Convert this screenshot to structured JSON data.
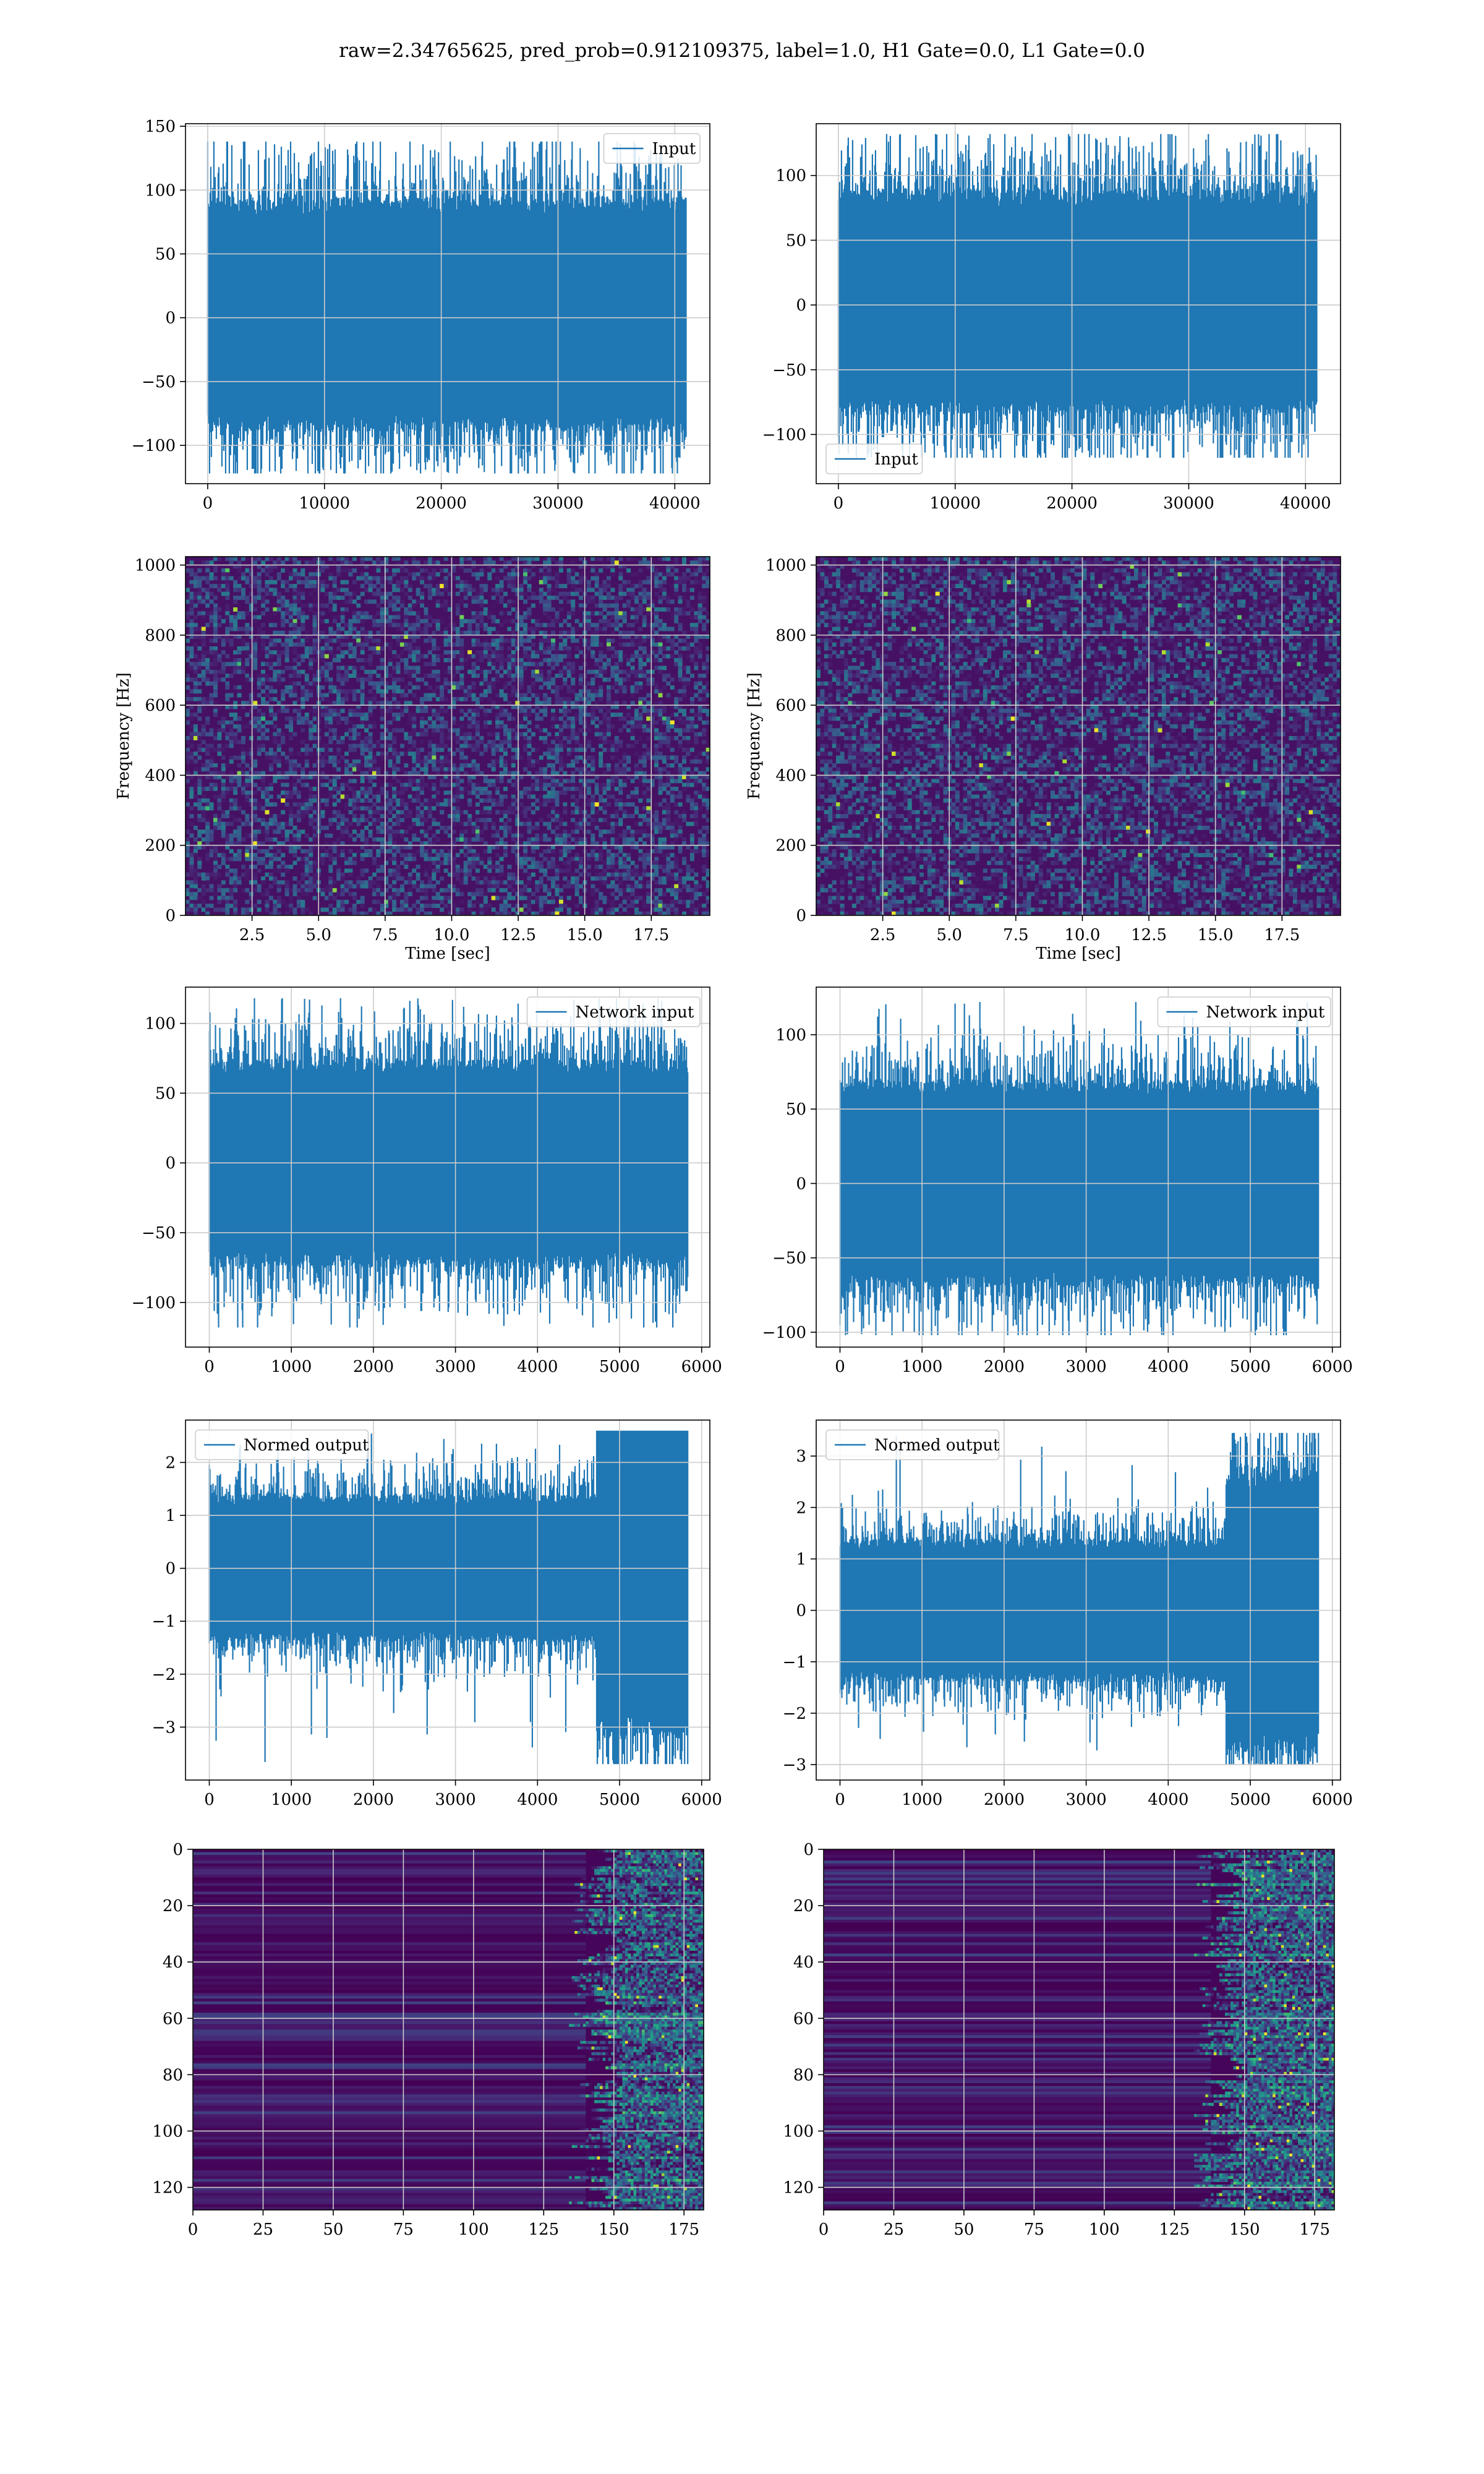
{
  "title": "raw=2.34765625, pred_prob=0.912109375, label=1.0, H1 Gate=0.0, L1 Gate=0.0",
  "colors": {
    "line": "#1f77b4",
    "grid": "#cccccc",
    "axis": "#000000",
    "cmap": "viridis"
  },
  "chart_data": [
    {
      "id": "h1-input",
      "type": "line",
      "legend": "Input",
      "legend_loc": "upper right",
      "xlim": [
        -1900,
        43000
      ],
      "ylim": [
        -130,
        152
      ],
      "xticks": [
        0,
        10000,
        20000,
        30000,
        40000
      ],
      "yticks": [
        -100,
        -50,
        0,
        50,
        100,
        150
      ],
      "xlabel": "",
      "ylabel": "",
      "series": [
        {
          "n": 40960,
          "x_range": [
            0,
            40960
          ],
          "envelope": [
            -122,
            138
          ],
          "core": [
            -90,
            95
          ],
          "noise_scale": 30,
          "seed": 11
        }
      ]
    },
    {
      "id": "l1-input",
      "type": "line",
      "legend": "Input",
      "legend_loc": "lower left",
      "xlim": [
        -1900,
        43000
      ],
      "ylim": [
        -138,
        140
      ],
      "xticks": [
        0,
        10000,
        20000,
        30000,
        40000
      ],
      "yticks": [
        -100,
        -50,
        0,
        50,
        100
      ],
      "xlabel": "",
      "ylabel": "",
      "series": [
        {
          "n": 40960,
          "x_range": [
            0,
            40960
          ],
          "envelope": [
            -118,
            132
          ],
          "core": [
            -85,
            90
          ],
          "noise_scale": 30,
          "seed": 23
        }
      ]
    },
    {
      "id": "h1-spectrogram",
      "type": "heatmap",
      "xlim": [
        0,
        19.7
      ],
      "ylim": [
        0,
        1024
      ],
      "xticks": [
        2.5,
        5.0,
        7.5,
        10.0,
        12.5,
        15.0,
        17.5
      ],
      "yticks": [
        0,
        200,
        400,
        600,
        800,
        1000
      ],
      "xlabel": "Time [sec]",
      "ylabel": "Frequency [Hz]",
      "seed": 37
    },
    {
      "id": "l1-spectrogram",
      "type": "heatmap",
      "xlim": [
        0,
        19.7
      ],
      "ylim": [
        0,
        1024
      ],
      "xticks": [
        2.5,
        5.0,
        7.5,
        10.0,
        12.5,
        15.0,
        17.5
      ],
      "yticks": [
        0,
        200,
        400,
        600,
        800,
        1000
      ],
      "xlabel": "Time [sec]",
      "ylabel": "Frequency [Hz]",
      "seed": 41
    },
    {
      "id": "h1-network-input",
      "type": "line",
      "legend": "Network input",
      "legend_loc": "upper right",
      "xlim": [
        -290,
        6100
      ],
      "ylim": [
        -132,
        126
      ],
      "xticks": [
        0,
        1000,
        2000,
        3000,
        4000,
        5000,
        6000
      ],
      "yticks": [
        -100,
        -50,
        0,
        50,
        100
      ],
      "xlabel": "",
      "ylabel": "",
      "series": [
        {
          "n": 5830,
          "x_range": [
            0,
            5830
          ],
          "envelope": [
            -118,
            118
          ],
          "core": [
            -75,
            75
          ],
          "noise_scale": 24,
          "seed": 53
        }
      ]
    },
    {
      "id": "l1-network-input",
      "type": "line",
      "legend": "Network input",
      "legend_loc": "upper right",
      "xlim": [
        -290,
        6100
      ],
      "ylim": [
        -110,
        132
      ],
      "xticks": [
        0,
        1000,
        2000,
        3000,
        4000,
        5000,
        6000
      ],
      "yticks": [
        -100,
        -50,
        0,
        50,
        100
      ],
      "xlabel": "",
      "ylabel": "",
      "series": [
        {
          "n": 5830,
          "x_range": [
            0,
            5830
          ],
          "envelope": [
            -102,
            122
          ],
          "core": [
            -70,
            70
          ],
          "noise_scale": 22,
          "seed": 61
        }
      ]
    },
    {
      "id": "h1-normed-output",
      "type": "line",
      "legend": "Normed output",
      "legend_loc": "upper left",
      "xlim": [
        -290,
        6100
      ],
      "ylim": [
        -4.0,
        2.8
      ],
      "xticks": [
        0,
        1000,
        2000,
        3000,
        4000,
        5000,
        6000
      ],
      "yticks": [
        -3,
        -2,
        -1,
        0,
        1,
        2
      ],
      "xlabel": "",
      "ylabel": "",
      "series": [
        {
          "n": 5830,
          "x_range": [
            0,
            5830
          ],
          "envelope": [
            -3.7,
            2.6
          ],
          "core": [
            -1.4,
            1.4
          ],
          "noise_scale": 0.42,
          "burst_start": 4720,
          "burst_gain": 2.3,
          "seed": 71
        }
      ]
    },
    {
      "id": "l1-normed-output",
      "type": "line",
      "legend": "Normed output",
      "legend_loc": "upper left",
      "xlim": [
        -290,
        6100
      ],
      "ylim": [
        -3.3,
        3.7
      ],
      "xticks": [
        0,
        1000,
        2000,
        3000,
        4000,
        5000,
        6000
      ],
      "yticks": [
        -3,
        -2,
        -1,
        0,
        1,
        2,
        3
      ],
      "xlabel": "",
      "ylabel": "",
      "series": [
        {
          "n": 5830,
          "x_range": [
            0,
            5830
          ],
          "envelope": [
            -3.0,
            3.45
          ],
          "core": [
            -1.4,
            1.4
          ],
          "noise_scale": 0.42,
          "burst_start": 4700,
          "burst_gain": 2.0,
          "seed": 83
        }
      ]
    },
    {
      "id": "h1-feature-map",
      "type": "heatmap",
      "xlim": [
        0,
        182
      ],
      "ylim": [
        128,
        0
      ],
      "xticks": [
        0,
        25,
        50,
        75,
        100,
        125,
        150,
        175
      ],
      "yticks": [
        0,
        20,
        40,
        60,
        80,
        100,
        120
      ],
      "xlabel": "",
      "ylabel": "",
      "active_from": 140,
      "seed": 97
    },
    {
      "id": "l1-feature-map",
      "type": "heatmap",
      "xlim": [
        0,
        182
      ],
      "ylim": [
        128,
        0
      ],
      "xticks": [
        0,
        25,
        50,
        75,
        100,
        125,
        150,
        175
      ],
      "yticks": [
        0,
        20,
        40,
        60,
        80,
        100,
        120
      ],
      "xlabel": "",
      "ylabel": "",
      "active_from": 138,
      "seed": 101
    }
  ]
}
